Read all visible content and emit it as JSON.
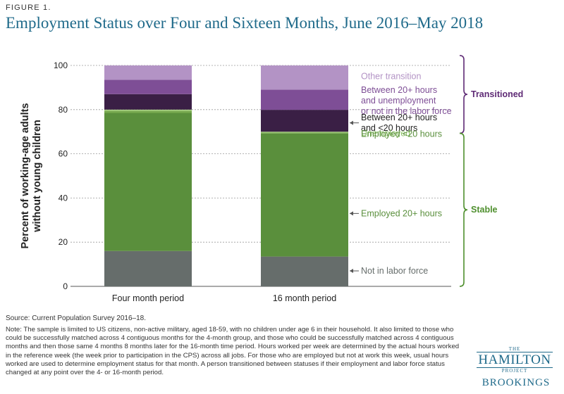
{
  "figure_label": "FIGURE 1.",
  "title": "Employment Status over Four and Sixteen Months, June 2016–May 2018",
  "source": "Source: Current Population Survey 2016–18.",
  "note": "Note: The sample is limited to US citizens, non-active military, aged 18-59, with no children under age 6 in their household. It also limited to those who could be successfully matched across 4 contiguous months for the 4-month group, and those who could be successfully matched across 4 contiguous months and then those same 4 months 8 months later for the 16-month time period. Hours worked per week are determined by the actual hours worked in the reference week (the week prior to participation in the CPS) across all jobs. For those who are employed but not at work this week, usual hours worked are used to determine employment status for that month. A person transitioned between statuses if their employment and labor force status changed at any point over the 4- or 16-month period.",
  "logo": {
    "the": "THE",
    "main": "HAMILTON",
    "project": "PROJECT",
    "brookings": "BROOKINGS"
  },
  "chart_data": {
    "type": "bar",
    "stacked": true,
    "ylabel": "Percent of working-age adults without young children",
    "ylim": [
      0,
      100
    ],
    "yticks": [
      0,
      20,
      40,
      60,
      80,
      100
    ],
    "grid": true,
    "categories": [
      "Four month period",
      "16 month period"
    ],
    "series": [
      {
        "name": "Not in labor force",
        "values": [
          16,
          13.5
        ],
        "color": "#666d6b"
      },
      {
        "name": "Employed 20+ hours",
        "values": [
          62.5,
          55.7
        ],
        "color": "#5a8f3c"
      },
      {
        "name": "Employed <20 hours",
        "values": [
          1.0,
          0.5
        ],
        "color": "#78aa4f"
      },
      {
        "name": "Unemployed",
        "values": [
          0.5,
          0.3
        ],
        "color": "#a6d17f"
      },
      {
        "name": "Between 20+ hours and <20 hours",
        "values": [
          7.0,
          9.9
        ],
        "color": "#3a1f45"
      },
      {
        "name": "Between 20+ hours and unemployment or not in the labor force",
        "values": [
          6.5,
          9.1
        ],
        "color": "#7e4e96"
      },
      {
        "name": "Other transition",
        "values": [
          6.5,
          11.0
        ],
        "color": "#b393c5"
      }
    ],
    "annotations": [
      {
        "label": "Other transition",
        "lines": [
          "Other transition"
        ],
        "at": 95,
        "arrow": false
      },
      {
        "label": "Between 20+ hours and unemployment or not in the labor force",
        "lines": [
          "Between 20+ hours",
          "and unemployment",
          "or not in the labor force"
        ],
        "at": 84,
        "arrow": false
      },
      {
        "label": "Between 20+ hours and <20 hours",
        "lines": [
          "Between 20+ hours",
          "and <20 hours"
        ],
        "at": 74,
        "arrow": true
      },
      {
        "label": "Unemployed",
        "lines": [
          "Unemployed"
        ],
        "at": 69.3,
        "arrow": false
      },
      {
        "label": "Employed <20 hours",
        "lines": [
          "Employed <20 hours"
        ],
        "at": 69,
        "arrow": false
      },
      {
        "label": "Employed 20+ hours",
        "lines": [
          "Employed 20+ hours"
        ],
        "at": 33,
        "arrow": true
      },
      {
        "label": "Not in labor force",
        "lines": [
          "Not in labor force"
        ],
        "at": 7,
        "arrow": true
      }
    ],
    "groups": [
      {
        "label": "Transitioned",
        "from": 69.3,
        "to": 104.5,
        "color": "#5e2a75"
      },
      {
        "label": "Stable",
        "from": 0,
        "to": 69.3,
        "color": "#4e8f2d"
      }
    ],
    "annotation_colors": {
      "Other transition": "#b393c5",
      "Between 20+ hours and unemployment or not in the labor force": "#7e4e96",
      "Between 20+ hours and <20 hours": "#222222",
      "Unemployed": "#8fc46a",
      "Employed <20 hours": "#5a8f3c",
      "Employed 20+ hours": "#5a8f3c",
      "Not in labor force": "#666d6b"
    }
  }
}
